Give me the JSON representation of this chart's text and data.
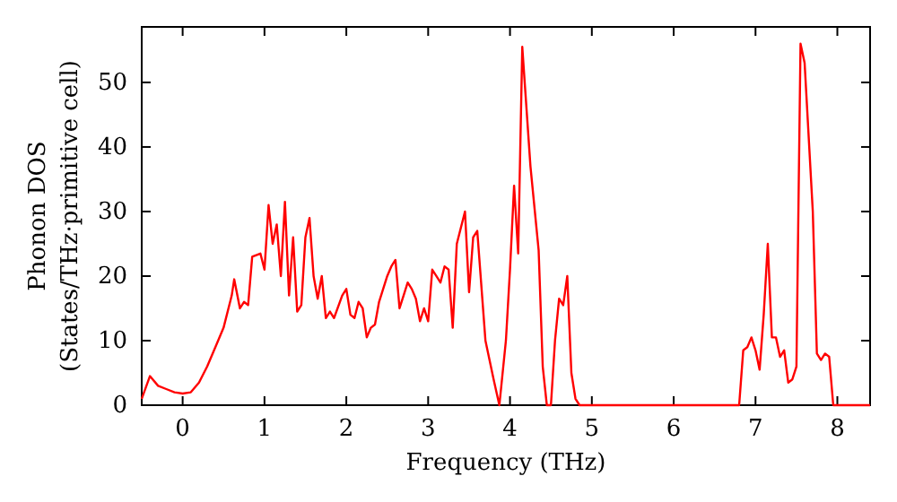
{
  "chart_data": {
    "type": "line",
    "xlabel": "Frequency (THz)",
    "ylabel": "Phonon DOS\n(States/THz·primitive cell)",
    "xlim": [
      -0.5,
      8.4
    ],
    "ylim": [
      0,
      58.6
    ],
    "xticks": [
      0,
      1,
      2,
      3,
      4,
      5,
      6,
      7,
      8
    ],
    "yticks": [
      0,
      10,
      20,
      30,
      40,
      50
    ],
    "grid": false,
    "marker": "none",
    "line_style": "solid",
    "series": [
      {
        "color": "#ff0000",
        "x": [
          -0.5,
          -0.4,
          -0.3,
          -0.2,
          -0.1,
          0,
          0.1,
          0.2,
          0.3,
          0.4,
          0.5,
          0.6,
          0.63,
          0.7,
          0.75,
          0.8,
          0.85,
          0.95,
          1.0,
          1.05,
          1.1,
          1.15,
          1.2,
          1.25,
          1.3,
          1.35,
          1.4,
          1.45,
          1.5,
          1.55,
          1.6,
          1.65,
          1.7,
          1.75,
          1.8,
          1.85,
          1.95,
          2.0,
          2.05,
          2.1,
          2.15,
          2.2,
          2.25,
          2.3,
          2.35,
          2.4,
          2.5,
          2.55,
          2.6,
          2.65,
          2.7,
          2.75,
          2.8,
          2.85,
          2.9,
          2.95,
          3.0,
          3.05,
          3.1,
          3.15,
          3.2,
          3.25,
          3.3,
          3.35,
          3.45,
          3.5,
          3.55,
          3.6,
          3.7,
          3.8,
          3.87,
          3.95,
          4.0,
          4.05,
          4.1,
          4.15,
          4.25,
          4.35,
          4.4,
          4.45,
          4.5,
          4.55,
          4.6,
          4.65,
          4.7,
          4.75,
          4.8,
          4.85,
          5.0,
          6.8,
          6.85,
          6.9,
          6.95,
          7.0,
          7.05,
          7.1,
          7.15,
          7.2,
          7.25,
          7.3,
          7.35,
          7.4,
          7.45,
          7.5,
          7.55,
          7.6,
          7.7,
          7.75,
          7.8,
          7.85,
          7.9,
          7.95,
          8.4
        ],
        "values": [
          1,
          4.5,
          3,
          2.5,
          2,
          1.8,
          2,
          3.5,
          6,
          9,
          12,
          17,
          19.5,
          15,
          16,
          15.5,
          23,
          23.5,
          21,
          31,
          25,
          28,
          20,
          31.5,
          17,
          26,
          14.5,
          15.5,
          26,
          29,
          20,
          16.5,
          20,
          13.5,
          14.5,
          13.5,
          17,
          18,
          14,
          13.5,
          16,
          15,
          10.5,
          12,
          12.5,
          16,
          20,
          21.5,
          22.5,
          15,
          17,
          19,
          18,
          16.5,
          13,
          15,
          13,
          21,
          20,
          19,
          21.5,
          21,
          12,
          25,
          30,
          17.5,
          26,
          27,
          10,
          4,
          0,
          10,
          21,
          34,
          23.5,
          55.5,
          37,
          24,
          6,
          0,
          0,
          10,
          16.5,
          15.5,
          20,
          5,
          1,
          0,
          0,
          0,
          8.5,
          9,
          10.5,
          8.5,
          5.5,
          14,
          25,
          10.5,
          10.5,
          7.5,
          8.5,
          3.5,
          4,
          6,
          56,
          53,
          30,
          8,
          7,
          8,
          7.5,
          0,
          0
        ]
      }
    ]
  }
}
